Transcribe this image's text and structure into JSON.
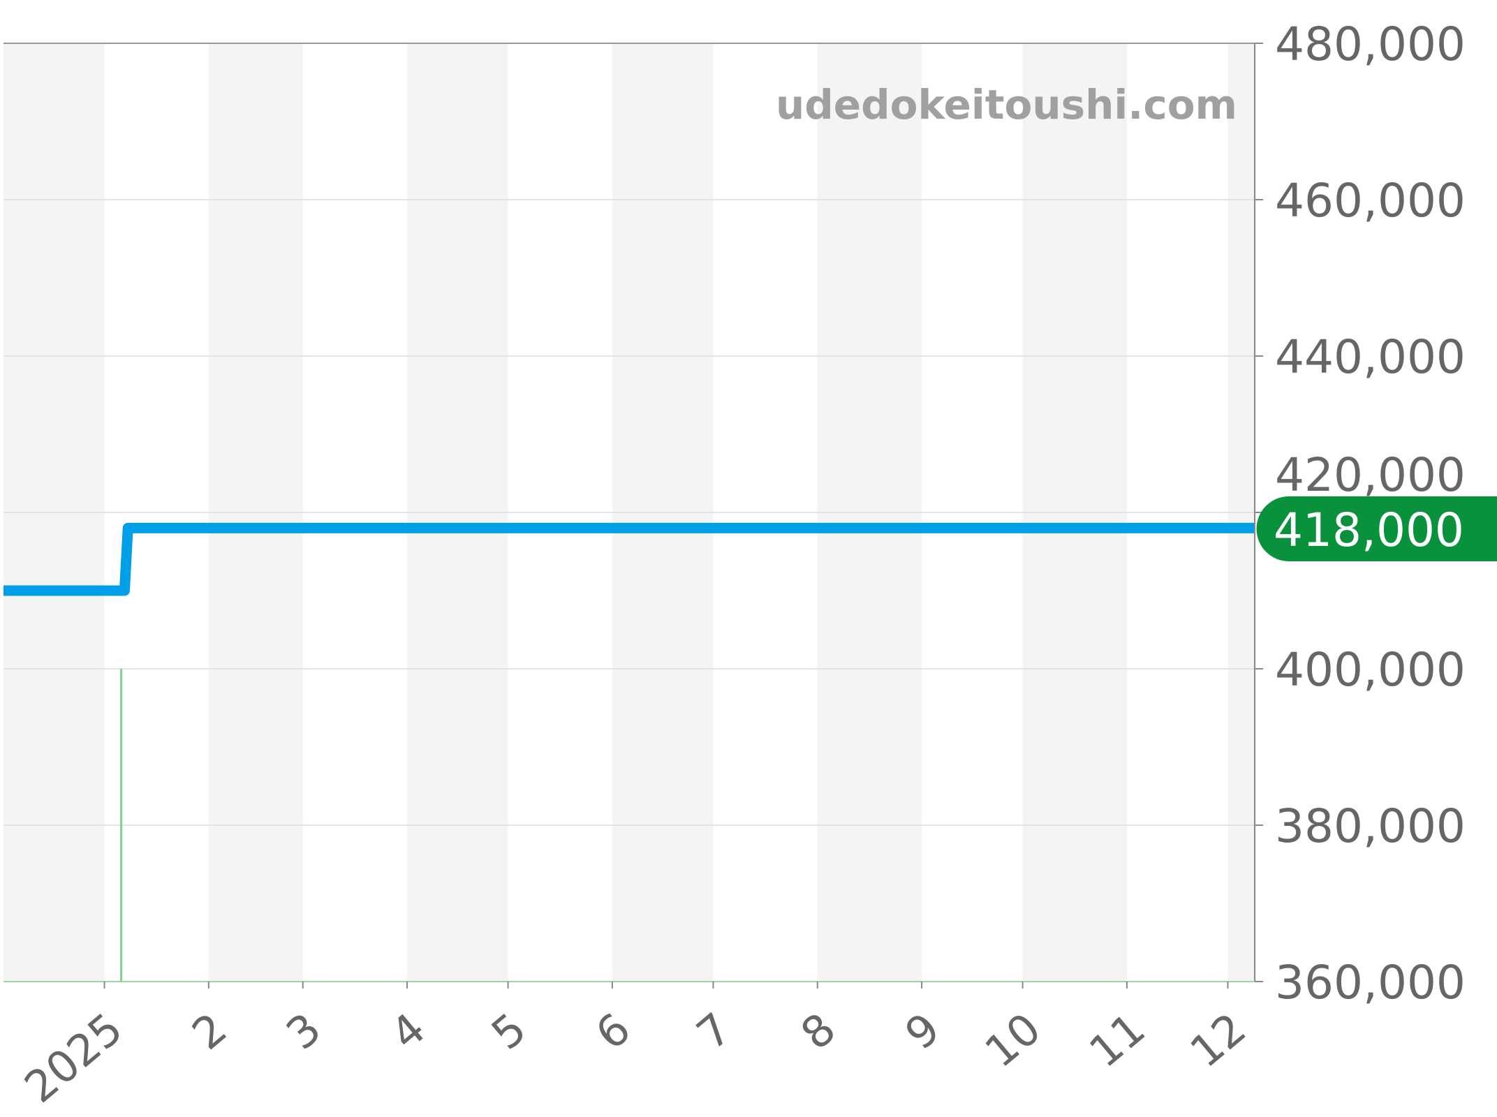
{
  "chart_data": {
    "type": "line",
    "step": true,
    "watermark": "udedokeitoushi.com",
    "xlim": [
      "2024-12-02",
      "2025-12-09"
    ],
    "ylim": [
      360000,
      480000
    ],
    "x_tick_labels": [
      "2025",
      "2",
      "3",
      "4",
      "5",
      "6",
      "7",
      "8",
      "9",
      "10",
      "11",
      "12"
    ],
    "x_tick_dates": [
      "2025-01-01",
      "2025-02-01",
      "2025-03-01",
      "2025-04-01",
      "2025-05-01",
      "2025-06-01",
      "2025-07-01",
      "2025-08-01",
      "2025-09-01",
      "2025-10-01",
      "2025-11-01",
      "2025-12-01"
    ],
    "y_tick_labels": [
      "480,000",
      "460,000",
      "440,000",
      "420,000",
      "400,000",
      "380,000",
      "360,000"
    ],
    "y_tick_values": [
      480000,
      460000,
      440000,
      420000,
      400000,
      380000,
      360000
    ],
    "grid": true,
    "shaded_alternate_months": true,
    "series": [
      {
        "color": "#009fe8",
        "points": [
          {
            "x": "2024-12-02",
            "y": 410000
          },
          {
            "x": "2025-01-07",
            "y": 410000
          },
          {
            "x": "2025-01-08",
            "y": 418000
          },
          {
            "x": "2025-12-09",
            "y": 418000
          }
        ]
      }
    ],
    "markers": [
      {
        "x": "2025-01-06",
        "y": 400000,
        "color": "#7fd38f"
      }
    ],
    "current_value_label": "418,000",
    "current_value_color": "#0a913c"
  }
}
